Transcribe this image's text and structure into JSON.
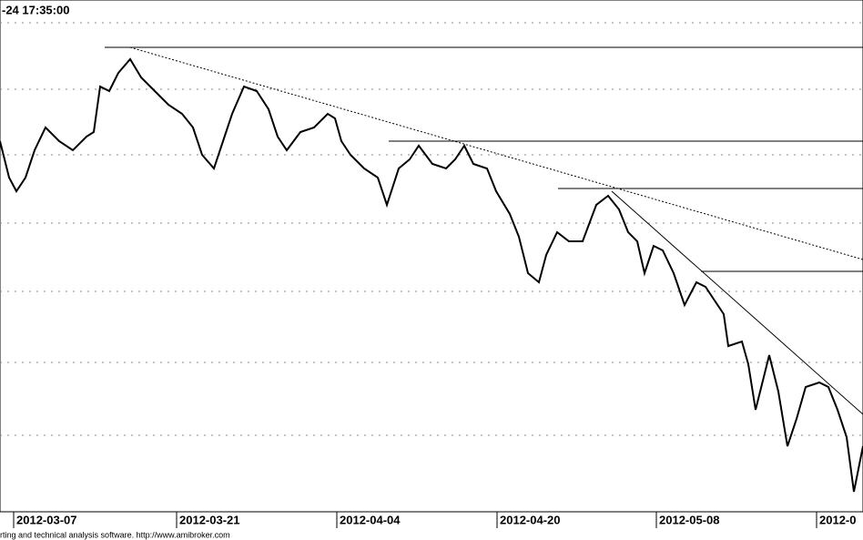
{
  "chart_data": {
    "type": "line",
    "title": "-24 17:35:00",
    "footer": "rting and technical analysis software. http://www.amibroker.com",
    "color": "#000000",
    "x": [
      0,
      10,
      18,
      28,
      38,
      50,
      65,
      80,
      95,
      103,
      110,
      120,
      130,
      143,
      155,
      170,
      185,
      200,
      212,
      222,
      235,
      245,
      255,
      268,
      282,
      295,
      305,
      315,
      330,
      345,
      360,
      368,
      375,
      385,
      400,
      415,
      425,
      438,
      450,
      460,
      475,
      490,
      500,
      510,
      520,
      535,
      545,
      560,
      570,
      580,
      592,
      600,
      612,
      625,
      640,
      655,
      668,
      680,
      690,
      700,
      708,
      718,
      728,
      740,
      752,
      765,
      775,
      785,
      795,
      800,
      815,
      822,
      830,
      845,
      855,
      865,
      875,
      885,
      900,
      910,
      920,
      930,
      938,
      948
    ],
    "values": [
      405,
      365,
      350,
      365,
      395,
      420,
      405,
      395,
      410,
      415,
      465,
      460,
      480,
      495,
      475,
      460,
      445,
      435,
      420,
      390,
      375,
      405,
      435,
      465,
      460,
      440,
      410,
      395,
      415,
      420,
      435,
      430,
      405,
      390,
      375,
      365,
      335,
      375,
      385,
      400,
      380,
      375,
      385,
      400,
      380,
      375,
      350,
      325,
      300,
      260,
      250,
      280,
      305,
      295,
      295,
      335,
      345,
      330,
      305,
      295,
      260,
      290,
      285,
      260,
      225,
      250,
      245,
      230,
      215,
      180,
      185,
      160,
      110,
      170,
      130,
      70,
      100,
      135,
      140,
      135,
      110,
      80,
      20,
      70
    ],
    "xlim": [
      0,
      948
    ],
    "xticks": [
      {
        "value": 15,
        "label": "2012-03-07"
      },
      {
        "value": 194,
        "label": "2012-03-21"
      },
      {
        "value": 370,
        "label": "2012-04-04"
      },
      {
        "value": 546,
        "label": "2012-04-20"
      },
      {
        "value": 721,
        "label": "2012-05-08"
      },
      {
        "value": 897,
        "label": "2012-0"
      }
    ],
    "ylim": [
      0,
      560
    ],
    "yticks": [
      82,
      162,
      240,
      315,
      390,
      462,
      535
    ],
    "grid": true
  }
}
